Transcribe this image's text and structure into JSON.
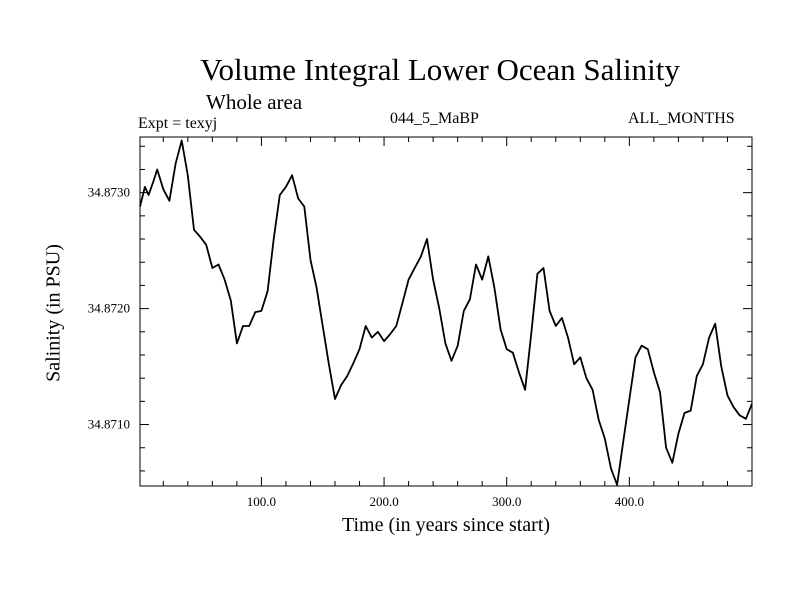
{
  "header": {
    "title": "Volume Integral Lower Ocean Salinity",
    "subtitle": "Whole area",
    "expt": "Expt = texyj",
    "center_label": "044_5_MaBP",
    "months": "ALL_MONTHS"
  },
  "chart_data": {
    "type": "line",
    "xlabel": "Time (in years since start)",
    "ylabel": "Salinity (in PSU)",
    "xlim": [
      1,
      500
    ],
    "ylim": [
      34.87047,
      34.87348
    ],
    "xticks": [
      100,
      200,
      300,
      400
    ],
    "xtick_labels": [
      "100.0",
      "200.0",
      "300.0",
      "400.0"
    ],
    "yticks": [
      34.871,
      34.872,
      34.873
    ],
    "ytick_labels": [
      "34.8710",
      "34.8720",
      "34.8730"
    ],
    "grid": false,
    "series": [
      {
        "x": [
          1,
          5,
          8,
          12,
          15,
          20,
          25,
          30,
          35,
          40,
          45,
          50,
          55,
          60,
          65,
          70,
          75,
          80,
          85,
          90,
          95,
          100,
          105,
          110,
          115,
          120,
          125,
          130,
          135,
          140,
          145,
          150,
          155,
          160,
          165,
          170,
          175,
          180,
          185,
          190,
          195,
          200,
          205,
          210,
          215,
          220,
          225,
          230,
          235,
          240,
          245,
          250,
          255,
          260,
          265,
          270,
          275,
          280,
          285,
          290,
          295,
          300,
          305,
          310,
          315,
          320,
          325,
          330,
          335,
          340,
          345,
          350,
          355,
          360,
          365,
          370,
          375,
          380,
          385,
          390,
          395,
          400,
          405,
          410,
          415,
          420,
          425,
          430,
          435,
          440,
          445,
          450,
          455,
          460,
          465,
          470,
          475,
          480,
          485,
          490,
          495,
          500
        ],
        "y": [
          34.87288,
          34.87305,
          34.87298,
          34.8731,
          34.8732,
          34.87303,
          34.87293,
          34.87325,
          34.87345,
          34.87315,
          34.87268,
          34.87262,
          34.87255,
          34.87235,
          34.87238,
          34.87225,
          34.87207,
          34.8717,
          34.87185,
          34.87185,
          34.87197,
          34.87198,
          34.87215,
          34.8726,
          34.87298,
          34.87305,
          34.87315,
          34.87295,
          34.87288,
          34.87242,
          34.87218,
          34.87185,
          34.87152,
          34.87122,
          34.87134,
          34.87142,
          34.87153,
          34.87165,
          34.87185,
          34.87175,
          34.8718,
          34.87172,
          34.87178,
          34.87185,
          34.87205,
          34.87225,
          34.87235,
          34.87245,
          34.8726,
          34.87225,
          34.872,
          34.8717,
          34.87155,
          34.87168,
          34.87198,
          34.87208,
          34.87238,
          34.87225,
          34.87245,
          34.87218,
          34.87182,
          34.87165,
          34.87162,
          34.87145,
          34.8713,
          34.87178,
          34.8723,
          34.87235,
          34.87198,
          34.87185,
          34.87192,
          34.87175,
          34.87152,
          34.87158,
          34.8714,
          34.8713,
          34.87104,
          34.87088,
          34.87062,
          34.87048,
          34.87085,
          34.87122,
          34.87158,
          34.87168,
          34.87165,
          34.87145,
          34.87128,
          34.8708,
          34.87067,
          34.87092,
          34.8711,
          34.87112,
          34.87142,
          34.87152,
          34.87175,
          34.87187,
          34.8715,
          34.87125,
          34.87115,
          34.87108,
          34.87105,
          34.87118
        ]
      }
    ]
  }
}
